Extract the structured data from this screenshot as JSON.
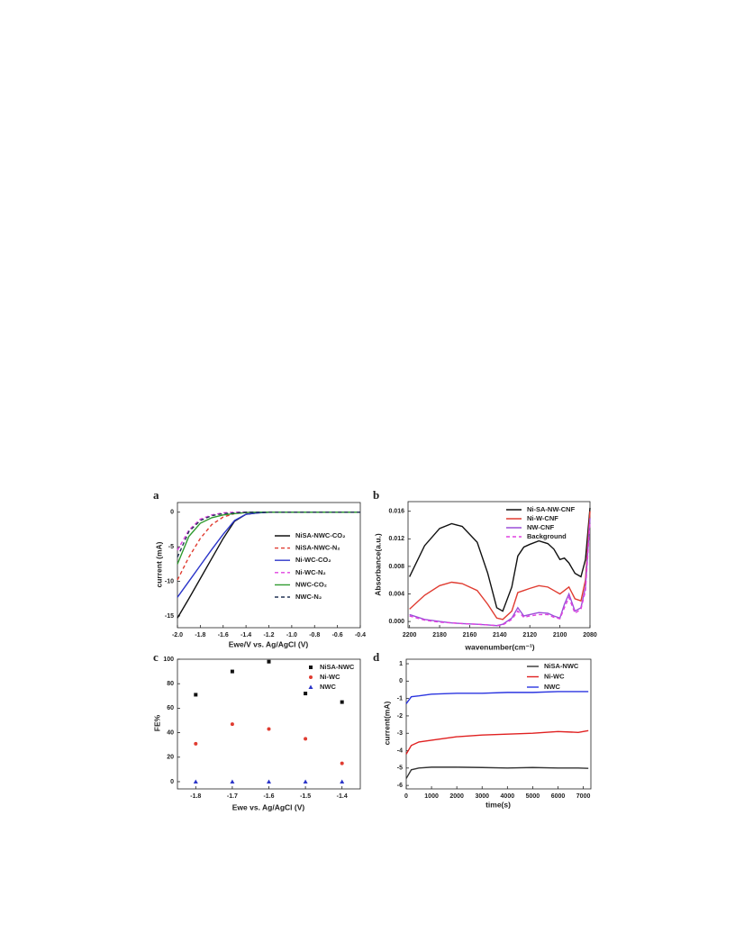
{
  "chart_data": [
    {
      "type": "line",
      "panel_label": "a",
      "x_label": "Ewe/V vs. Ag/AgCl (V)",
      "y_label": "current (mA)",
      "x": [
        -2.0,
        -1.9,
        -1.8,
        -1.7,
        -1.6,
        -1.5,
        -1.4,
        -1.3,
        -1.2,
        -1.0,
        -0.8,
        -0.6,
        -0.4
      ],
      "series": [
        {
          "name": "NiSA-NWC-CO₂",
          "color": "#111111",
          "style": "solid",
          "values": [
            -15.3,
            -12.5,
            -9.6,
            -6.7,
            -3.8,
            -1.3,
            -0.3,
            -0.1,
            0,
            0,
            0,
            0,
            0
          ]
        },
        {
          "name": "NiSA-NWC-N₂",
          "color": "#e03c31",
          "style": "dashed",
          "values": [
            -9.8,
            -6.5,
            -3.8,
            -1.8,
            -0.7,
            -0.2,
            -0.05,
            0,
            0,
            0,
            0,
            0,
            0
          ]
        },
        {
          "name": "Ni-WC-CO₂",
          "color": "#2b35c9",
          "style": "solid",
          "values": [
            -12.3,
            -10.0,
            -7.7,
            -5.4,
            -3.2,
            -1.2,
            -0.3,
            -0.1,
            0,
            0,
            0,
            0,
            0
          ]
        },
        {
          "name": "Ni-WC-N₂",
          "color": "#e040e0",
          "style": "dashed",
          "values": [
            -5.5,
            -2.6,
            -1.0,
            -0.4,
            -0.1,
            0,
            0,
            0,
            0,
            0,
            0,
            0,
            0
          ]
        },
        {
          "name": "NWC-CO₂",
          "color": "#2e9a2e",
          "style": "solid",
          "values": [
            -7.5,
            -3.5,
            -1.6,
            -0.8,
            -0.4,
            -0.2,
            -0.05,
            0,
            0,
            0,
            0,
            0,
            0
          ]
        },
        {
          "name": "NWC-N₂",
          "color": "#223355",
          "style": "dashed",
          "values": [
            -6.5,
            -2.8,
            -1.2,
            -0.5,
            -0.2,
            -0.1,
            0,
            0,
            0,
            0,
            0,
            0,
            0
          ]
        }
      ],
      "xlim": [
        -2.0,
        -0.4
      ],
      "ylim": [
        -16.7,
        1.4
      ],
      "xticks": [
        {
          "value": -2,
          "label": "-2.0"
        },
        -1.8,
        -1.6,
        -1.4,
        -1.2,
        {
          "value": -1,
          "label": "-1.0"
        },
        -0.8,
        -0.6,
        -0.4
      ],
      "yticks": [
        0,
        -5,
        -10,
        -15
      ]
    },
    {
      "type": "line",
      "panel_label": "b",
      "x_label": "wavenumber(cm⁻¹)",
      "y_label": "Absorbance(a.u.)",
      "x": [
        2200,
        2190,
        2180,
        2172,
        2165,
        2155,
        2148,
        2142,
        2138,
        2132,
        2128,
        2124,
        2120,
        2114,
        2108,
        2104,
        2100,
        2097,
        2094,
        2090,
        2086,
        2083,
        2080
      ],
      "series": [
        {
          "name": "Ni-SA-NW-CNF",
          "color": "#111111",
          "style": "solid",
          "values": [
            0.0065,
            0.011,
            0.0135,
            0.0142,
            0.0138,
            0.0115,
            0.007,
            0.002,
            0.0015,
            0.005,
            0.0095,
            0.0108,
            0.0112,
            0.0117,
            0.0113,
            0.0105,
            0.009,
            0.0092,
            0.0085,
            0.007,
            0.0065,
            0.009,
            0.0165
          ]
        },
        {
          "name": "Ni-W-CNF",
          "color": "#e03c31",
          "style": "solid",
          "values": [
            0.0018,
            0.0038,
            0.0052,
            0.0057,
            0.0055,
            0.0045,
            0.0025,
            0.0005,
            0.0003,
            0.0015,
            0.0042,
            0.0045,
            0.0048,
            0.0052,
            0.005,
            0.0045,
            0.004,
            0.0045,
            0.005,
            0.0033,
            0.003,
            0.006,
            0.016
          ]
        },
        {
          "name": "NW-CNF",
          "color": "#9b4fd8",
          "style": "solid",
          "values": [
            0.001,
            0.0003,
            0,
            -0.0002,
            -0.0003,
            -0.0004,
            -0.0005,
            -0.0006,
            -0.0004,
            0.0005,
            0.002,
            0.0008,
            0.001,
            0.0013,
            0.0012,
            0.0008,
            0.0005,
            0.0025,
            0.004,
            0.0015,
            0.002,
            0.005,
            0.015
          ]
        },
        {
          "name": "Background",
          "color": "#e040e0",
          "style": "dashed",
          "values": [
            0.0008,
            0.0002,
            -0.0001,
            -0.0002,
            -0.0003,
            -0.0004,
            -0.0005,
            -0.0006,
            -0.0005,
            0.0003,
            0.0015,
            0.0006,
            0.0008,
            0.001,
            0.001,
            0.0006,
            0.0004,
            0.002,
            0.0035,
            0.0012,
            0.0018,
            0.0045,
            0.0145
          ]
        }
      ],
      "xlim": [
        2201,
        2080
      ],
      "ylim": [
        -0.0009,
        0.0174
      ],
      "xticks": [
        2200,
        2180,
        2160,
        2140,
        2120,
        2100,
        2080
      ],
      "yticks": [
        {
          "value": 0,
          "label": "0.000"
        },
        0.004,
        0.008,
        0.012,
        0.016
      ]
    },
    {
      "type": "scatter",
      "panel_label": "c",
      "x_label": "Ewe vs. Ag/AgCl (V)",
      "y_label": "FE%",
      "x": [
        -1.8,
        -1.7,
        -1.6,
        -1.5,
        -1.4
      ],
      "series": [
        {
          "name": "NiSA-NWC",
          "color": "#111111",
          "marker": "square",
          "values": [
            71,
            90,
            98,
            72,
            65
          ]
        },
        {
          "name": "Ni-WC",
          "color": "#e03c31",
          "marker": "circle",
          "values": [
            31,
            47,
            43,
            35,
            15
          ]
        },
        {
          "name": "NWC",
          "color": "#2b35c9",
          "marker": "triangle",
          "values": [
            0,
            0,
            0,
            0,
            0
          ]
        }
      ],
      "xlim": [
        -1.85,
        -1.35
      ],
      "ylim": [
        -5.9,
        100
      ],
      "xticks": [
        -1.8,
        -1.7,
        -1.6,
        -1.5,
        -1.4
      ],
      "yticks": [
        0,
        20,
        40,
        60,
        80,
        100
      ]
    },
    {
      "type": "line",
      "panel_label": "d",
      "x_label": "time(s)",
      "y_label": "current(mA)",
      "x": [
        0,
        200,
        500,
        1000,
        2000,
        3000,
        4000,
        5000,
        6000,
        6800,
        7200
      ],
      "series": [
        {
          "name": "NiSA-NWC",
          "color": "#333333",
          "style": "solid",
          "values": [
            -5.6,
            -5.1,
            -5.0,
            -4.95,
            -4.95,
            -4.97,
            -5.0,
            -4.97,
            -5.0,
            -5.0,
            -5.02
          ]
        },
        {
          "name": "Ni-WC",
          "color": "#e02020",
          "style": "solid",
          "values": [
            -4.2,
            -3.7,
            -3.5,
            -3.4,
            -3.2,
            -3.1,
            -3.05,
            -3.0,
            -2.9,
            -2.95,
            -2.85
          ]
        },
        {
          "name": "NWC",
          "color": "#2b35e0",
          "style": "solid",
          "values": [
            -1.3,
            -0.9,
            -0.85,
            -0.75,
            -0.7,
            -0.7,
            -0.65,
            -0.65,
            -0.6,
            -0.6,
            -0.6
          ]
        }
      ],
      "xlim": [
        0,
        7300
      ],
      "ylim": [
        -6.2,
        1.26
      ],
      "xticks": [
        0,
        1000,
        2000,
        3000,
        4000,
        5000,
        6000,
        7000
      ],
      "yticks": [
        1,
        0,
        -1,
        -2,
        -3,
        -4,
        -5,
        -6
      ]
    }
  ]
}
